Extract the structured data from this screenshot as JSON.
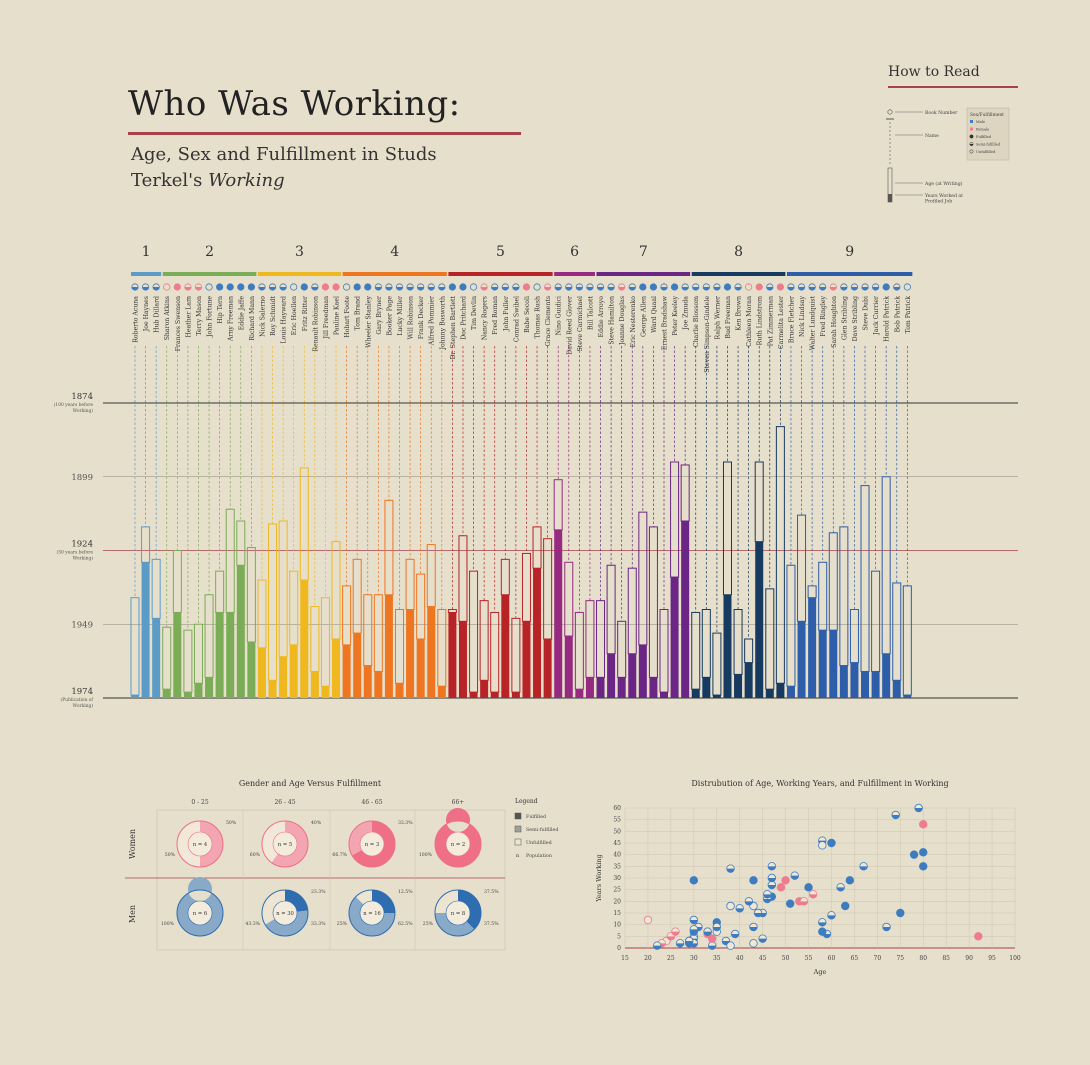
{
  "title": "Who Was Working:",
  "subtitle_line1": "Age, Sex and Fulfillment in Studs",
  "subtitle_line2a": "Terkel's ",
  "subtitle_line2b": "Working",
  "colors": {
    "background": "#e6dfcb",
    "accent_rule": "#a8434a",
    "female": "#ee7b8e",
    "male": "#3e7cc0",
    "books": [
      "#5b9bc8",
      "#7bad56",
      "#f0b81f",
      "#ef7620",
      "#b82328",
      "#962a82",
      "#6a2585",
      "#173a60",
      "#2e5ea9"
    ]
  },
  "how_to_read": {
    "title": "How to Read",
    "book_number": "Book Number",
    "name": "Name",
    "age": "Age (at Writing)",
    "years_worked": "Years Worked at Profiled Job",
    "sex_fulfillment": "Sex/Fulfillment",
    "legend_items": [
      "Male",
      "Female",
      "Fulfilled",
      "Semi-fulfilled",
      "Unfulfilled"
    ]
  },
  "y_axis": {
    "1874": "1874",
    "1874_note1": "(100 years before",
    "1874_note2": "Working)",
    "1899": "1899",
    "1924": "1924",
    "1924_note1": "(50 years before",
    "1924_note2": "Working)",
    "1949": "1949",
    "1974": "1974",
    "1974_note1": "(Publication of",
    "1974_note2": "Working)"
  },
  "chart_data": [
    {
      "type": "bar",
      "title": "",
      "x_labels_note": "each bar: birth year (top = 1974 - age) and start of profiled job (1974 - years working)",
      "ylim": [
        1874,
        1974
      ],
      "book_numbers": [
        "1",
        "2",
        "3",
        "4",
        "5",
        "6",
        "7",
        "8",
        "9"
      ],
      "people": [
        {
          "name": "Roberto Acuna",
          "book": 1,
          "sex": "M",
          "f": "semi",
          "age": 34,
          "years": 1
        },
        {
          "name": "Joe Haynes",
          "book": 1,
          "sex": "M",
          "f": "semi",
          "age": 58,
          "years": 46
        },
        {
          "name": "Hub Dillard",
          "book": 1,
          "sex": "M",
          "f": "semi",
          "age": 47,
          "years": 27
        },
        {
          "name": "Sharon Atkins",
          "book": 2,
          "sex": "F",
          "f": "un",
          "age": 24,
          "years": 3
        },
        {
          "name": "Frances Swenson",
          "book": 2,
          "sex": "F",
          "f": "full",
          "age": 50,
          "years": 29
        },
        {
          "name": "Heather Lam",
          "book": 2,
          "sex": "F",
          "f": "semi",
          "age": 23,
          "years": 2
        },
        {
          "name": "Terry Mason",
          "book": 2,
          "sex": "F",
          "f": "semi",
          "age": 25,
          "years": 5
        },
        {
          "name": "John Fortune",
          "book": 2,
          "sex": "M",
          "f": "un",
          "age": 35,
          "years": 7
        },
        {
          "name": "Hip Tern",
          "book": 2,
          "sex": "M",
          "f": "full",
          "age": 43,
          "years": 29
        },
        {
          "name": "Arny Freeman",
          "book": 2,
          "sex": "M",
          "f": "full",
          "age": 64,
          "years": 29
        },
        {
          "name": "Eddie Jaffe",
          "book": 2,
          "sex": "M",
          "f": "full",
          "age": 60,
          "years": 45
        },
        {
          "name": "Richard Mann",
          "book": 2,
          "sex": "M",
          "f": "full",
          "age": 51,
          "years": 19
        },
        {
          "name": "Nick Salerno",
          "book": 3,
          "sex": "M",
          "f": "semi",
          "age": 40,
          "years": 17
        },
        {
          "name": "Roy Schmidt",
          "book": 3,
          "sex": "M",
          "f": "semi",
          "age": 59,
          "years": 6
        },
        {
          "name": "Louis Hayward",
          "book": 3,
          "sex": "M",
          "f": "semi",
          "age": 60,
          "years": 14
        },
        {
          "name": "Eric Hoellen",
          "book": 3,
          "sex": "M",
          "f": "un",
          "age": 43,
          "years": 18
        },
        {
          "name": "Fritz Ritter",
          "book": 3,
          "sex": "M",
          "f": "full",
          "age": 78,
          "years": 40
        },
        {
          "name": "Renault Robinson",
          "book": 3,
          "sex": "M",
          "f": "semi",
          "age": 31,
          "years": 9
        },
        {
          "name": "Jill Freedman",
          "book": 3,
          "sex": "F",
          "f": "full",
          "age": 34,
          "years": 4
        },
        {
          "name": "Pauline Kael",
          "book": 3,
          "sex": "F",
          "f": "full",
          "age": 53,
          "years": 20
        },
        {
          "name": "Hobart Foote",
          "book": 4,
          "sex": "M",
          "f": "un",
          "age": 38,
          "years": 18
        },
        {
          "name": "Tom Brand",
          "book": 4,
          "sex": "M",
          "f": "full",
          "age": 47,
          "years": 22
        },
        {
          "name": "Wheeler Stanley",
          "book": 4,
          "sex": "M",
          "f": "full",
          "age": 35,
          "years": 11
        },
        {
          "name": "Gary Bryner",
          "book": 4,
          "sex": "M",
          "f": "semi",
          "age": 35,
          "years": 9
        },
        {
          "name": "Booker Page",
          "book": 4,
          "sex": "M",
          "f": "semi",
          "age": 67,
          "years": 35
        },
        {
          "name": "Lucky Miller",
          "book": 4,
          "sex": "M",
          "f": "semi",
          "age": 30,
          "years": 5
        },
        {
          "name": "Will Robinson",
          "book": 4,
          "sex": "M",
          "f": "semi",
          "age": 47,
          "years": 30
        },
        {
          "name": "Frank Decker",
          "book": 4,
          "sex": "M",
          "f": "semi",
          "age": 42,
          "years": 20
        },
        {
          "name": "Alfred Pommier",
          "book": 4,
          "sex": "M",
          "f": "semi",
          "age": 52,
          "years": 31
        },
        {
          "name": "Johnny Bosworth",
          "book": 4,
          "sex": "M",
          "f": "semi",
          "age": 30,
          "years": 4
        },
        {
          "name": "Dr. Stephen Bartlett",
          "book": 5,
          "sex": "M",
          "f": "full",
          "age": 30,
          "years": 29
        },
        {
          "name": "Doc Pritchard",
          "book": 5,
          "sex": "M",
          "f": "full",
          "age": 55,
          "years": 26
        },
        {
          "name": "Tim Devlin",
          "book": 5,
          "sex": "M",
          "f": "un",
          "age": 43,
          "years": 2
        },
        {
          "name": "Nancy Rogers",
          "book": 5,
          "sex": "F",
          "f": "semi",
          "age": 33,
          "years": 6
        },
        {
          "name": "Fred Roman",
          "book": 5,
          "sex": "M",
          "f": "semi",
          "age": 29,
          "years": 2
        },
        {
          "name": "John Fuller",
          "book": 5,
          "sex": "M",
          "f": "semi",
          "age": 47,
          "years": 35
        },
        {
          "name": "Conrad Swibel",
          "book": 5,
          "sex": "M",
          "f": "semi",
          "age": 27,
          "years": 2
        },
        {
          "name": "Babe Secoli",
          "book": 5,
          "sex": "F",
          "f": "full",
          "age": 49,
          "years": 26
        },
        {
          "name": "Thomas Rush",
          "book": 5,
          "sex": "M",
          "f": "un",
          "age": 58,
          "years": 44
        },
        {
          "name": "Grace Clements",
          "book": 5,
          "sex": "F",
          "f": "semi",
          "age": 54,
          "years": 20
        },
        {
          "name": "Nino Guidici",
          "book": 6,
          "sex": "M",
          "f": "semi",
          "age": 74,
          "years": 57
        },
        {
          "name": "David Reed Glover",
          "book": 6,
          "sex": "M",
          "f": "semi",
          "age": 46,
          "years": 21
        },
        {
          "name": "Steve Carmichael",
          "book": 6,
          "sex": "M",
          "f": "semi",
          "age": 29,
          "years": 3
        },
        {
          "name": "Bill Talcott",
          "book": 6,
          "sex": "M",
          "f": "semi",
          "age": 33,
          "years": 7
        },
        {
          "name": "Eddie Arroyo",
          "book": 7,
          "sex": "M",
          "f": "semi",
          "age": 33,
          "years": 7
        },
        {
          "name": "Steve Hamilton",
          "book": 7,
          "sex": "M",
          "f": "semi",
          "age": 45,
          "years": 15
        },
        {
          "name": "Joanne Douglas",
          "book": 7,
          "sex": "F",
          "f": "semi",
          "age": 26,
          "years": 7
        },
        {
          "name": "Eric Nesterenko",
          "book": 7,
          "sex": "M",
          "f": "semi",
          "age": 44,
          "years": 15
        },
        {
          "name": "George Allen",
          "book": 7,
          "sex": "M",
          "f": "full",
          "age": 63,
          "years": 18
        },
        {
          "name": "Ward Quaal",
          "book": 7,
          "sex": "M",
          "f": "full",
          "age": 58,
          "years": 7
        },
        {
          "name": "Ernest Bradshaw",
          "book": 7,
          "sex": "M",
          "f": "semi",
          "age": 30,
          "years": 2
        },
        {
          "name": "Peter Keeley",
          "book": 7,
          "sex": "M",
          "f": "full",
          "age": 80,
          "years": 41
        },
        {
          "name": "Joe Zmuda",
          "book": 7,
          "sex": "M",
          "f": "semi",
          "age": 79,
          "years": 60
        },
        {
          "name": "Charlie Blossom",
          "book": 8,
          "sex": "M",
          "f": "semi",
          "age": 29,
          "years": 3
        },
        {
          "name": "Steven Simpson-Gindele",
          "book": 8,
          "sex": "M",
          "f": "semi",
          "age": 30,
          "years": 7
        },
        {
          "name": "Ralph Werner",
          "book": 8,
          "sex": "M",
          "f": "semi",
          "age": 22,
          "years": 1
        },
        {
          "name": "Bud Freeman",
          "book": 8,
          "sex": "M",
          "f": "full",
          "age": 80,
          "years": 35
        },
        {
          "name": "Ken Brown",
          "book": 8,
          "sex": "M",
          "f": "semi",
          "age": 30,
          "years": 8
        },
        {
          "name": "Cathleen Moran",
          "book": 8,
          "sex": "F",
          "f": "un",
          "age": 20,
          "years": 12
        },
        {
          "name": "Ruth Lindstrom",
          "book": 8,
          "sex": "F",
          "f": "full",
          "age": 80,
          "years": 53
        },
        {
          "name": "Pat Zimmerman",
          "book": 8,
          "sex": "M",
          "f": "semi",
          "age": 37,
          "years": 3
        },
        {
          "name": "Carmelita Lester",
          "book": 8,
          "sex": "F",
          "f": "full",
          "age": 92,
          "years": 5
        },
        {
          "name": "Bruce Fletcher",
          "book": 9,
          "sex": "M",
          "f": "semi",
          "age": 45,
          "years": 4
        },
        {
          "name": "Nick Lindsay",
          "book": 9,
          "sex": "M",
          "f": "semi",
          "age": 62,
          "years": 26
        },
        {
          "name": "Walter Lundquist",
          "book": 9,
          "sex": "M",
          "f": "semi",
          "age": 38,
          "years": 34
        },
        {
          "name": "Fred Ringley",
          "book": 9,
          "sex": "M",
          "f": "semi",
          "age": 46,
          "years": 23
        },
        {
          "name": "Sarah Houghton",
          "book": 9,
          "sex": "F",
          "f": "semi",
          "age": 56,
          "years": 23
        },
        {
          "name": "Glen Stribling",
          "book": 9,
          "sex": "M",
          "f": "semi",
          "age": 58,
          "years": 11
        },
        {
          "name": "Dave Stribling",
          "book": 9,
          "sex": "M",
          "f": "semi",
          "age": 30,
          "years": 12
        },
        {
          "name": "Steve Dubi",
          "book": 9,
          "sex": "M",
          "f": "semi",
          "age": 72,
          "years": 9
        },
        {
          "name": "Jack Currier",
          "book": 9,
          "sex": "M",
          "f": "semi",
          "age": 43,
          "years": 9
        },
        {
          "name": "Harold Patrick",
          "book": 9,
          "sex": "M",
          "f": "full",
          "age": 75,
          "years": 15
        },
        {
          "name": "Bob Patrick",
          "book": 9,
          "sex": "M",
          "f": "semi",
          "age": 39,
          "years": 6
        },
        {
          "name": "Tom Patrick",
          "book": 9,
          "sex": "M",
          "f": "un",
          "age": 38,
          "years": 1
        }
      ]
    },
    {
      "type": "pie",
      "title": "Gender and Age Versus Fulfillment",
      "columns": [
        "0 - 25",
        "26 - 45",
        "46 - 65",
        "66+"
      ],
      "rows": [
        "Women",
        "Men"
      ],
      "legend_title": "Legend",
      "legend": [
        "Fulfilled",
        "Semi-fulfilled",
        "Unfulfilled",
        "Population"
      ],
      "legend_n": "n",
      "cells": [
        {
          "row": "Women",
          "col": "0 - 25",
          "n_label": "n = 4",
          "fulfilled": 0,
          "semi": 50,
          "un": 50,
          "labels": [
            "50%",
            "50%"
          ]
        },
        {
          "row": "Women",
          "col": "26 - 45",
          "n_label": "n = 5",
          "fulfilled": 0,
          "semi": 60,
          "un": 40,
          "labels": [
            "40%",
            "60%"
          ]
        },
        {
          "row": "Women",
          "col": "46 - 65",
          "n_label": "n = 3",
          "fulfilled": 66.7,
          "semi": 33.3,
          "un": 0,
          "labels": [
            "33.3%",
            "66.7%"
          ]
        },
        {
          "row": "Women",
          "col": "66+",
          "n_label": "n = 2",
          "fulfilled": 100,
          "semi": 0,
          "un": 0,
          "labels": [
            "100%"
          ]
        },
        {
          "row": "Men",
          "col": "0 - 25",
          "n_label": "n = 6",
          "fulfilled": 0,
          "semi": 100,
          "un": 0,
          "labels": [
            "100%"
          ]
        },
        {
          "row": "Men",
          "col": "26 - 45",
          "n_label": "n = 30",
          "fulfilled": 23.3,
          "semi": 43.3,
          "un": 33.3,
          "labels": [
            "23.3%",
            "43.3%",
            "33.3%"
          ]
        },
        {
          "row": "Men",
          "col": "46 - 65",
          "n_label": "n = 16",
          "fulfilled": 25,
          "semi": 62.5,
          "un": 12.5,
          "labels": [
            "12.5%",
            "25%",
            "62.5%"
          ]
        },
        {
          "row": "Men",
          "col": "66+",
          "n_label": "n = 8",
          "fulfilled": 37.5,
          "semi": 37.5,
          "un": 25,
          "labels": [
            "37.5%",
            "25%",
            "37.5%"
          ]
        }
      ]
    },
    {
      "type": "scatter",
      "title": "Distrubution of Age, Working Years, and Fulfillment in Working",
      "xlabel": "Age",
      "ylabel": "Years Working",
      "xlim": [
        15,
        100
      ],
      "ylim": [
        0,
        60
      ],
      "xticks": [
        "15",
        "20",
        "25",
        "30",
        "35",
        "40",
        "45",
        "50",
        "55",
        "60",
        "65",
        "70",
        "75",
        "80",
        "85",
        "90",
        "95",
        "100"
      ],
      "yticks": [
        "0",
        "5",
        "10",
        "15",
        "20",
        "25",
        "30",
        "35",
        "40",
        "45",
        "50",
        "55",
        "60"
      ],
      "points_note": "uses people list: x = age, y = years"
    }
  ]
}
